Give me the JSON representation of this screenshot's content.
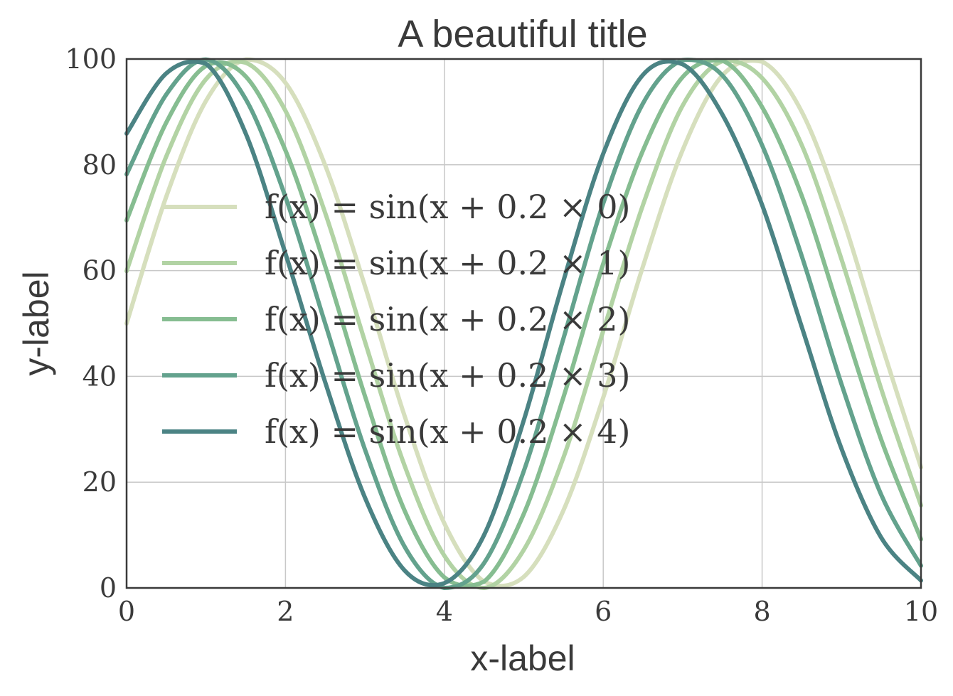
{
  "chart_data": {
    "type": "line",
    "title": "A beautiful title",
    "xlabel": "x-label",
    "ylabel": "y-label",
    "xlim": [
      0,
      10
    ],
    "ylim": [
      0,
      100
    ],
    "xticks": [
      0,
      2,
      4,
      6,
      8,
      10
    ],
    "yticks": [
      0,
      20,
      40,
      60,
      80,
      100
    ],
    "xtick_labels": [
      "0",
      "2",
      "4",
      "6",
      "8",
      "10"
    ],
    "ytick_labels": [
      "0",
      "20",
      "40",
      "60",
      "80",
      "100"
    ],
    "grid": true,
    "legend_position": "center-left",
    "x": [
      0,
      0.5,
      1,
      1.5,
      2,
      2.5,
      3,
      3.5,
      4,
      4.5,
      5,
      5.5,
      6,
      6.5,
      7,
      7.5,
      8,
      8.5,
      9,
      9.5,
      10
    ],
    "series": [
      {
        "name": "f(x) = sin(x + 0.2 × 0)",
        "color": "#d6dfbd",
        "values": [
          50.0,
          74.0,
          92.1,
          99.9,
          95.5,
          79.9,
          57.1,
          32.5,
          12.2,
          1.2,
          2.1,
          14.7,
          36.0,
          60.8,
          82.8,
          96.9,
          99.5,
          90.0,
          70.6,
          46.2,
          22.8
        ]
      },
      {
        "name": "f(x) = sin(x + 0.2 × 1)",
        "color": "#b2d3a4",
        "values": [
          59.9,
          81.6,
          96.2,
          99.3,
          90.2,
          70.9,
          46.6,
          23.1,
          6.1,
          0.0,
          7.2,
          24.7,
          48.6,
          72.4,
          91.2,
          99.6,
          96.4,
          83.7,
          62.1,
          37.6,
          15.6
        ]
      },
      {
        "name": "f(x) = sin(x + 0.2 × 2)",
        "color": "#86bd91",
        "values": [
          69.5,
          88.0,
          98.7,
          96.7,
          82.7,
          60.8,
          36.3,
          14.6,
          2.0,
          1.2,
          14.0,
          36.1,
          61.3,
          82.7,
          96.6,
          99.7,
          90.9,
          74.1,
          51.0,
          28.0,
          9.2
        ]
      },
      {
        "name": "f(x) = sin(x + 0.2 × 3)",
        "color": "#63a28d",
        "values": [
          78.2,
          93.3,
          99.9,
          92.4,
          73.9,
          50.0,
          26.2,
          7.8,
          0.0,
          4.7,
          22.1,
          47.2,
          72.7,
          91.6,
          99.8,
          96.9,
          83.7,
          62.7,
          38.5,
          17.6,
          4.2
        ]
      },
      {
        "name": "f(x) = sin(x + 0.2 × 4)",
        "color": "#4b8384",
        "values": [
          85.9,
          97.3,
          99.1,
          85.9,
          63.2,
          38.9,
          17.1,
          3.3,
          0.9,
          10.0,
          31.7,
          58.1,
          82.1,
          97.0,
          99.0,
          89.5,
          72.4,
          49.3,
          26.3,
          9.5,
          1.4
        ]
      }
    ]
  }
}
